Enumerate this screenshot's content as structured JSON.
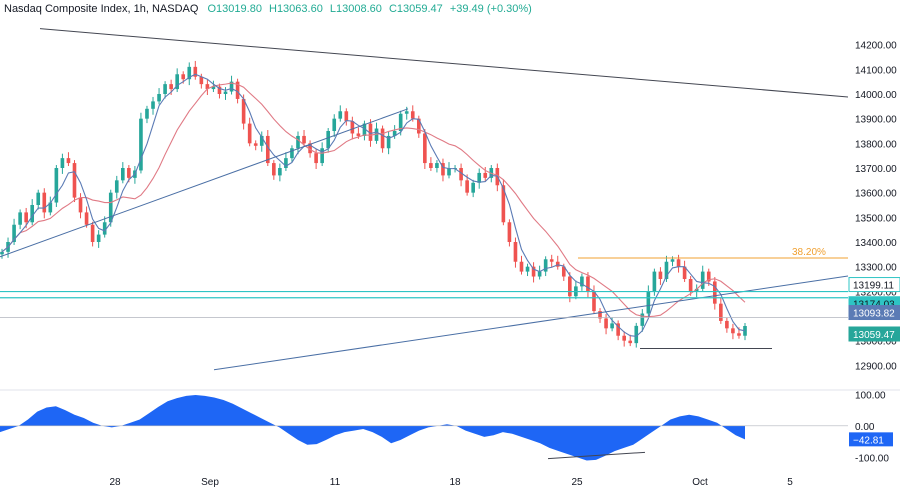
{
  "header": {
    "symbol": "Nasdaq Composite Index, 1h, NASDAQ",
    "open": "O13019.80",
    "high": "H13063.60",
    "low": "L13008.60",
    "close": "C13059.47",
    "change": "+39.49 (+0.30%)"
  },
  "colors": {
    "up": "#26a69a",
    "down": "#ef5350",
    "ma_fast": "#5b7bb5",
    "ma_slow": "#e07a85",
    "trendline": "#4a6fa5",
    "fib": "#f0a030",
    "level": "#2ec4c4",
    "osc": "#1e66f5"
  },
  "chart_data": [
    {
      "type": "candlestick",
      "title": "Nasdaq Composite Index, 1h, NASDAQ",
      "ylim": [
        12800,
        14300
      ],
      "y_ticks": [
        12900,
        13000,
        13200,
        13300,
        13400,
        13500,
        13600,
        13700,
        13800,
        13900,
        14000,
        14100,
        14200
      ],
      "y_tick_labels": [
        "12900.00",
        "13000.00",
        "13200.00",
        "13300.00",
        "13400.00",
        "13500.00",
        "13600.00",
        "13700.00",
        "13800.00",
        "13900.00",
        "14000.00",
        "14100.00",
        "14200.00"
      ],
      "x_ticks": [
        "28",
        "Sep",
        "11",
        "18",
        "25",
        "Oct",
        "5"
      ],
      "closes": [
        13360,
        13400,
        13470,
        13520,
        13480,
        13550,
        13600,
        13520,
        13560,
        13700,
        13740,
        13720,
        13580,
        13520,
        13470,
        13400,
        13430,
        13480,
        13600,
        13650,
        13700,
        13660,
        13690,
        13900,
        13940,
        13970,
        14000,
        14040,
        14020,
        14080,
        14060,
        14110,
        14070,
        14040,
        14020,
        14030,
        14000,
        14010,
        14050,
        13980,
        13880,
        13800,
        13790,
        13830,
        13720,
        13670,
        13700,
        13740,
        13780,
        13830,
        13800,
        13760,
        13720,
        13780,
        13850,
        13900,
        13930,
        13890,
        13840,
        13830,
        13880,
        13810,
        13860,
        13780,
        13830,
        13850,
        13920,
        13930,
        13900,
        13840,
        13720,
        13700,
        13720,
        13670,
        13700,
        13700,
        13650,
        13600,
        13640,
        13680,
        13660,
        13700,
        13630,
        13480,
        13400,
        13320,
        13280,
        13300,
        13260,
        13280,
        13330,
        13320,
        13300,
        13260,
        13180,
        13220,
        13260,
        13200,
        13120,
        13090,
        13050,
        13070,
        13020,
        13000,
        12990,
        13060,
        13110,
        13200,
        13280,
        13250,
        13320,
        13330,
        13300,
        13250,
        13200,
        13210,
        13280,
        13240,
        13150,
        13080,
        13050,
        13030,
        13020,
        13059.47
      ],
      "levels": [
        {
          "name": "38.20%",
          "value": 13335
        },
        {
          "name": "13199.11",
          "value": 13199.11
        },
        {
          "name": "13174.03",
          "value": 13174.03
        },
        {
          "name": "13093.82",
          "value": 13093.82
        },
        {
          "name": "13059.47",
          "value": 13059.47
        }
      ],
      "fib_label": "38.20%"
    },
    {
      "type": "area",
      "ylim": [
        -140,
        120
      ],
      "y_ticks": [
        100,
        0,
        -100
      ],
      "y_tick_labels": [
        "100.00",
        "0.00",
        "-100.00"
      ],
      "current_label": "−42.81",
      "values": [
        -20,
        -10,
        0,
        20,
        45,
        58,
        62,
        50,
        35,
        25,
        10,
        0,
        -5,
        0,
        10,
        20,
        40,
        60,
        78,
        88,
        95,
        98,
        95,
        90,
        82,
        70,
        55,
        40,
        25,
        10,
        -5,
        -25,
        -45,
        -60,
        -58,
        -45,
        -30,
        -20,
        -15,
        -10,
        -20,
        -35,
        -55,
        -45,
        -30,
        -15,
        -5,
        0,
        5,
        0,
        -15,
        -25,
        -35,
        -30,
        -20,
        -25,
        -35,
        -45,
        -55,
        -70,
        -80,
        -90,
        -100,
        -110,
        -108,
        -95,
        -80,
        -70,
        -60,
        -40,
        -20,
        0,
        20,
        30,
        35,
        30,
        20,
        10,
        -10,
        -30,
        -42.81
      ]
    }
  ]
}
